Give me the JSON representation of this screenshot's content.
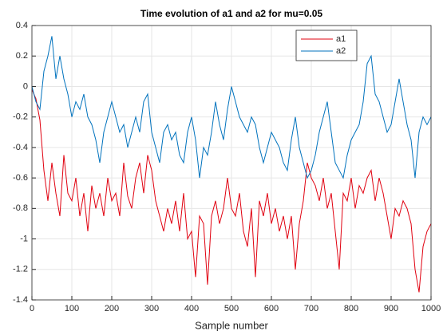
{
  "chart_data": {
    "type": "line",
    "title": "Time evolution of a1 and a2 for mu=0.05",
    "xlabel": "Sample number",
    "x": [
      0,
      10,
      20,
      30,
      40,
      50,
      60,
      70,
      80,
      90,
      100,
      110,
      120,
      130,
      140,
      150,
      160,
      170,
      180,
      190,
      200,
      210,
      220,
      230,
      240,
      250,
      260,
      270,
      280,
      290,
      300,
      310,
      320,
      330,
      340,
      350,
      360,
      370,
      380,
      390,
      400,
      410,
      420,
      430,
      440,
      450,
      460,
      470,
      480,
      490,
      500,
      510,
      520,
      530,
      540,
      550,
      560,
      570,
      580,
      590,
      600,
      610,
      620,
      630,
      640,
      650,
      660,
      670,
      680,
      690,
      700,
      710,
      720,
      730,
      740,
      750,
      760,
      770,
      780,
      790,
      800,
      810,
      820,
      830,
      840,
      850,
      860,
      870,
      880,
      890,
      900,
      910,
      920,
      930,
      940,
      950,
      960,
      970,
      980,
      990,
      1000
    ],
    "series": [
      {
        "name": "a1",
        "color": "#e0000f",
        "values": [
          -0.02,
          -0.08,
          -0.22,
          -0.55,
          -0.75,
          -0.5,
          -0.7,
          -0.85,
          -0.45,
          -0.7,
          -0.75,
          -0.6,
          -0.85,
          -0.7,
          -0.95,
          -0.65,
          -0.8,
          -0.7,
          -0.85,
          -0.6,
          -0.75,
          -0.7,
          -0.85,
          -0.5,
          -0.72,
          -0.8,
          -0.6,
          -0.5,
          -0.7,
          -0.45,
          -0.55,
          -0.75,
          -0.85,
          -0.95,
          -0.8,
          -0.9,
          -0.75,
          -0.95,
          -0.7,
          -1.0,
          -0.95,
          -1.25,
          -0.85,
          -0.9,
          -1.3,
          -0.85,
          -0.75,
          -0.9,
          -0.8,
          -0.6,
          -0.8,
          -0.85,
          -0.7,
          -0.95,
          -1.05,
          -0.8,
          -1.25,
          -0.75,
          -0.85,
          -0.7,
          -0.9,
          -0.8,
          -0.95,
          -0.85,
          -1.0,
          -0.85,
          -1.2,
          -0.9,
          -0.75,
          -0.5,
          -0.6,
          -0.65,
          -0.75,
          -0.6,
          -0.8,
          -0.7,
          -0.95,
          -1.2,
          -0.7,
          -0.75,
          -0.6,
          -0.8,
          -0.65,
          -0.7,
          -0.6,
          -0.55,
          -0.75,
          -0.6,
          -0.7,
          -0.85,
          -1.0,
          -0.8,
          -0.85,
          -0.75,
          -0.8,
          -0.9,
          -1.2,
          -1.35,
          -1.05,
          -0.95,
          -0.9
        ]
      },
      {
        "name": "a2",
        "color": "#0072bd",
        "values": [
          0,
          -0.1,
          -0.15,
          0.1,
          0.2,
          0.33,
          0.05,
          0.2,
          0.05,
          -0.05,
          -0.2,
          -0.1,
          -0.15,
          -0.05,
          -0.2,
          -0.25,
          -0.35,
          -0.5,
          -0.3,
          -0.2,
          -0.1,
          -0.2,
          -0.3,
          -0.25,
          -0.4,
          -0.3,
          -0.2,
          -0.3,
          -0.1,
          -0.05,
          -0.3,
          -0.4,
          -0.5,
          -0.3,
          -0.25,
          -0.35,
          -0.3,
          -0.45,
          -0.5,
          -0.3,
          -0.2,
          -0.35,
          -0.6,
          -0.4,
          -0.45,
          -0.3,
          -0.1,
          -0.25,
          -0.35,
          -0.15,
          0,
          -0.1,
          -0.2,
          -0.25,
          -0.3,
          -0.2,
          -0.25,
          -0.4,
          -0.5,
          -0.4,
          -0.3,
          -0.35,
          -0.4,
          -0.5,
          -0.55,
          -0.35,
          -0.2,
          -0.4,
          -0.5,
          -0.6,
          -0.55,
          -0.45,
          -0.3,
          -0.2,
          -0.1,
          -0.3,
          -0.5,
          -0.55,
          -0.6,
          -0.45,
          -0.35,
          -0.3,
          -0.25,
          -0.1,
          0.15,
          0.2,
          -0.05,
          -0.1,
          -0.2,
          -0.3,
          -0.25,
          -0.1,
          0.05,
          -0.1,
          -0.25,
          -0.35,
          -0.6,
          -0.3,
          -0.2,
          -0.25,
          -0.2
        ]
      }
    ],
    "xlim": [
      0,
      1000
    ],
    "xticks": [
      0,
      100,
      200,
      300,
      400,
      500,
      600,
      700,
      800,
      900,
      1000
    ],
    "ylim": [
      -1.4,
      0.4
    ],
    "yticks": [
      -1.4,
      -1.2,
      -1,
      -0.8,
      -0.6,
      -0.4,
      -0.2,
      0,
      0.2,
      0.4
    ],
    "grid": true,
    "legend": "northeast"
  }
}
